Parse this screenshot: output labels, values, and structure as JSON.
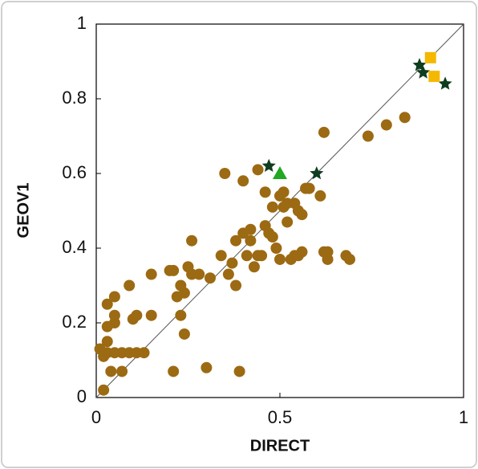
{
  "chart_data": {
    "type": "scatter",
    "x_label": "DIRECT",
    "y_label": "GEOV1",
    "xlim": [
      0,
      1
    ],
    "ylim": [
      0,
      1
    ],
    "xticks": [
      0,
      0.5,
      1
    ],
    "yticks": [
      0,
      0.2,
      0.4,
      0.6,
      0.8,
      1
    ],
    "identity_line": true,
    "series": [
      {
        "color": "#9c6a12",
        "marker": "circle",
        "x": [
          0.02,
          0.02,
          0.01,
          0.02,
          0.03,
          0.03,
          0.03,
          0.03,
          0.04,
          0.05,
          0.05,
          0.05,
          0.05,
          0.07,
          0.07,
          0.09,
          0.09,
          0.1,
          0.11,
          0.11,
          0.13,
          0.15,
          0.15,
          0.2,
          0.21,
          0.21,
          0.22,
          0.23,
          0.23,
          0.24,
          0.24,
          0.25,
          0.26,
          0.26,
          0.28,
          0.3,
          0.31,
          0.34,
          0.35,
          0.36,
          0.37,
          0.38,
          0.39,
          0.38,
          0.4,
          0.4,
          0.41,
          0.42,
          0.42,
          0.43,
          0.44,
          0.44,
          0.45,
          0.46,
          0.46,
          0.47,
          0.48,
          0.48,
          0.49,
          0.5,
          0.5,
          0.51,
          0.51,
          0.52,
          0.52,
          0.53,
          0.54,
          0.54,
          0.55,
          0.55,
          0.56,
          0.56,
          0.57,
          0.58,
          0.61,
          0.62,
          0.62,
          0.63,
          0.63,
          0.68,
          0.69,
          0.74,
          0.79,
          0.84
        ],
        "y": [
          0.02,
          0.12,
          0.13,
          0.11,
          0.12,
          0.15,
          0.19,
          0.25,
          0.07,
          0.12,
          0.2,
          0.22,
          0.27,
          0.07,
          0.12,
          0.12,
          0.3,
          0.21,
          0.12,
          0.22,
          0.12,
          0.22,
          0.33,
          0.34,
          0.07,
          0.34,
          0.27,
          0.3,
          0.22,
          0.28,
          0.17,
          0.35,
          0.33,
          0.42,
          0.33,
          0.08,
          0.32,
          0.38,
          0.6,
          0.33,
          0.36,
          0.3,
          0.07,
          0.42,
          0.44,
          0.58,
          0.38,
          0.42,
          0.45,
          0.35,
          0.38,
          0.61,
          0.38,
          0.55,
          0.46,
          0.44,
          0.43,
          0.51,
          0.4,
          0.54,
          0.37,
          0.51,
          0.55,
          0.52,
          0.47,
          0.37,
          0.52,
          0.38,
          0.5,
          0.38,
          0.49,
          0.39,
          0.56,
          0.56,
          0.54,
          0.71,
          0.39,
          0.37,
          0.39,
          0.38,
          0.37,
          0.7,
          0.73,
          0.75
        ]
      },
      {
        "color": "#22a822",
        "marker": "triangle",
        "x": [
          0.5
        ],
        "y": [
          0.6
        ]
      },
      {
        "color": "#0f3d1f",
        "marker": "star",
        "x": [
          0.47,
          0.6,
          0.88,
          0.89,
          0.95
        ],
        "y": [
          0.62,
          0.6,
          0.89,
          0.87,
          0.84
        ]
      },
      {
        "color": "#f5b800",
        "marker": "square",
        "x": [
          0.91,
          0.92
        ],
        "y": [
          0.91,
          0.86
        ]
      }
    ]
  }
}
